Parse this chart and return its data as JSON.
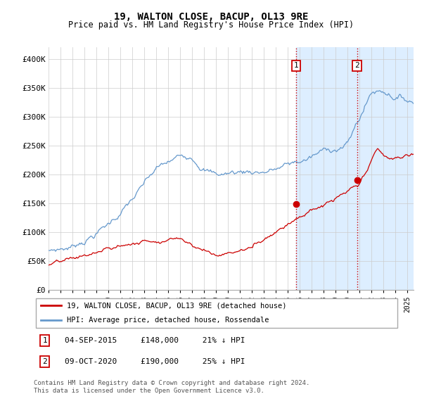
{
  "title": "19, WALTON CLOSE, BACUP, OL13 9RE",
  "subtitle": "Price paid vs. HM Land Registry's House Price Index (HPI)",
  "ylabel_ticks": [
    "£0",
    "£50K",
    "£100K",
    "£150K",
    "£200K",
    "£250K",
    "£300K",
    "£350K",
    "£400K"
  ],
  "ytick_values": [
    0,
    50000,
    100000,
    150000,
    200000,
    250000,
    300000,
    350000,
    400000
  ],
  "ylim": [
    0,
    420000
  ],
  "xlim_start": 1995.0,
  "xlim_end": 2025.5,
  "hpi_color": "#6699cc",
  "price_color": "#cc0000",
  "marker1_date": 2015.67,
  "marker1_price": 148000,
  "marker2_date": 2020.77,
  "marker2_price": 190000,
  "vline_color": "#cc0000",
  "shaded_color": "#ddeeff",
  "legend_line1": "19, WALTON CLOSE, BACUP, OL13 9RE (detached house)",
  "legend_line2": "HPI: Average price, detached house, Rossendale",
  "footer": "Contains HM Land Registry data © Crown copyright and database right 2024.\nThis data is licensed under the Open Government Licence v3.0.",
  "xlabel_years": [
    1995,
    1996,
    1997,
    1998,
    1999,
    2000,
    2001,
    2002,
    2003,
    2004,
    2005,
    2006,
    2007,
    2008,
    2009,
    2010,
    2011,
    2012,
    2013,
    2014,
    2015,
    2016,
    2017,
    2018,
    2019,
    2020,
    2021,
    2022,
    2023,
    2024,
    2025
  ]
}
